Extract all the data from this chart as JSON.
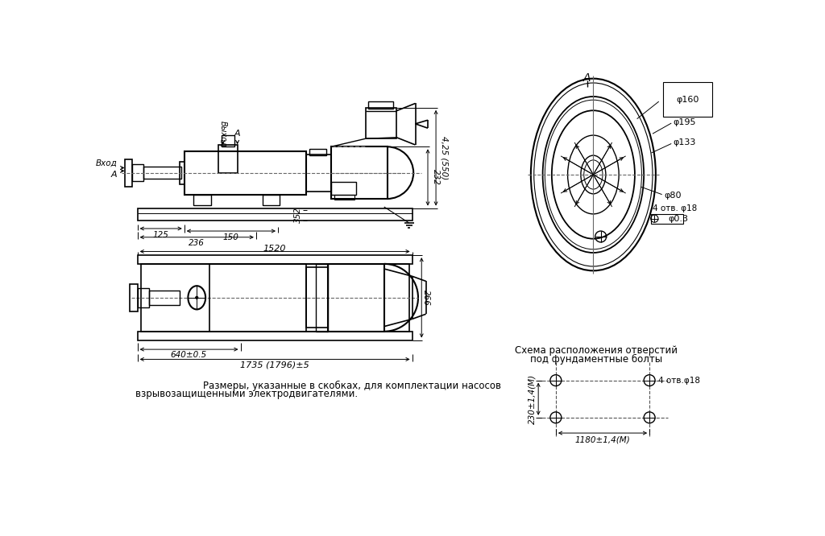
{
  "bg_color": "#ffffff",
  "line_color": "#000000",
  "text_color": "#000000",
  "note_line1": "Размеры, указанные в скобках, для комплектации насосов",
  "note_line2": "взрывозащищенными электродвигателями.",
  "scheme_label": "Схема расположения отверстий",
  "scheme_label2": "под фундаментные болты",
  "label_A_top": "A",
  "label_vyhod": "Выход",
  "label_vhod": "Вход",
  "label_A_left": "A",
  "dim_125": "125",
  "dim_150": "150",
  "dim_236": "236",
  "dim_352": "352",
  "dim_1520": "1520",
  "dim_232": "232",
  "dim_425": "4,25 (550)",
  "dim_266": "266",
  "dim_640": "640±0.5",
  "dim_1735": "1735 (1796)±5",
  "dim_d160": "φ160",
  "dim_d195": "φ195",
  "dim_d133": "φ133",
  "dim_d80": "φ80",
  "dim_4otv": "4 отв. φ18",
  "dim_d03": "φ0.3",
  "dim_4otv2": "4 отв.φ18",
  "dim_1180": "1180±1,4(М)",
  "dim_230": "230±1,4(М)"
}
